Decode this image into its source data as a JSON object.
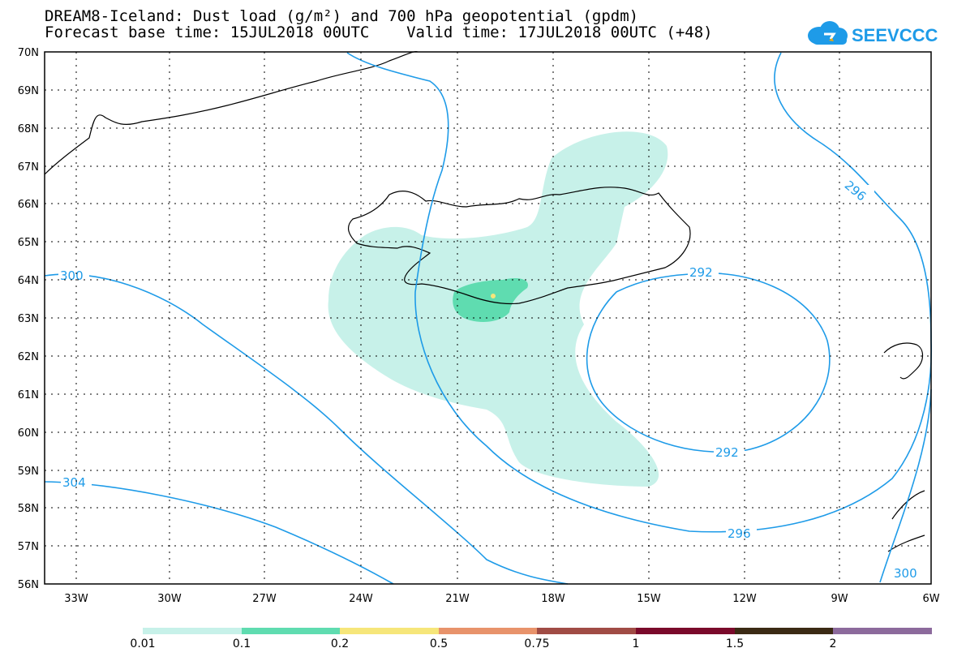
{
  "header": {
    "title_line1": "DREAM8-Iceland: Dust load (g/m²) and 700 hPa geopotential (gpdm)",
    "title_line2": "Forecast base time: 15JUL2018 00UTC    Valid time: 17JUL2018 00UTC (+48)"
  },
  "logo": {
    "text": "SEEVCCC",
    "icon": "cloud-logo-icon",
    "color": "#1e9be8"
  },
  "map": {
    "lat_labels": [
      "70N",
      "69N",
      "68N",
      "67N",
      "66N",
      "65N",
      "64N",
      "63N",
      "62N",
      "61N",
      "60N",
      "59N",
      "58N",
      "57N",
      "56N"
    ],
    "lon_labels": [
      "33W",
      "30W",
      "27W",
      "24W",
      "21W",
      "18W",
      "15W",
      "12W",
      "9W",
      "6W"
    ],
    "contour_labels": [
      "300",
      "304",
      "292",
      "292",
      "296",
      "296",
      "300"
    ],
    "contour_color": "#1e9be8",
    "coastline_color": "#000000"
  },
  "colorbar": {
    "labels": [
      "0.01",
      "0.1",
      "0.2",
      "0.5",
      "0.75",
      "1",
      "1.5",
      "2"
    ],
    "colors": [
      "#c7f1e9",
      "#5fdcb0",
      "#f6e67a",
      "#e8936b",
      "#a04c45",
      "#7a0a2b",
      "#3b2a14",
      "#8c6a9c"
    ]
  }
}
